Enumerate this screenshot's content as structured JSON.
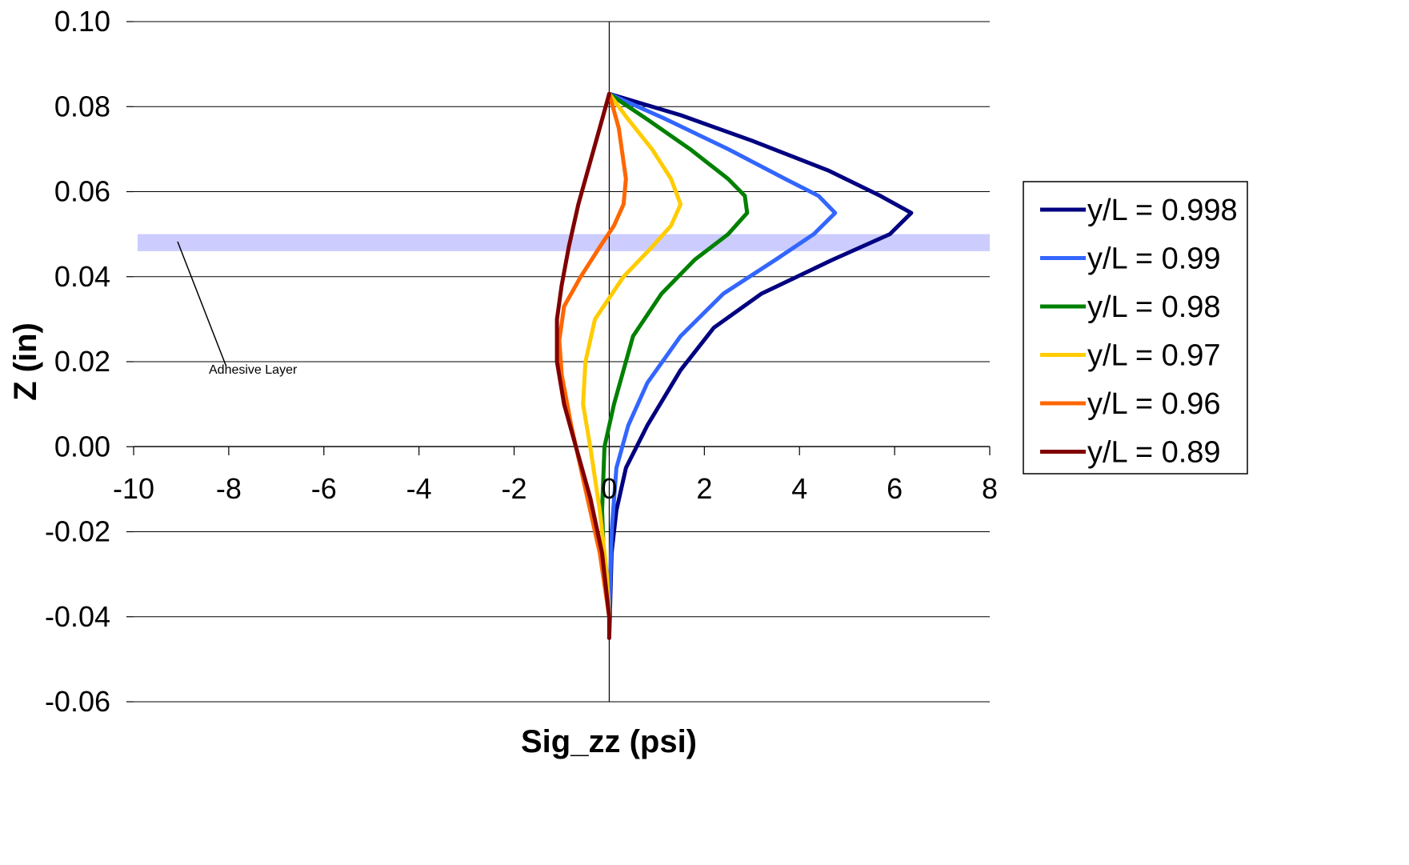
{
  "chart_data": {
    "type": "line",
    "title": "",
    "xlabel": "Sig_zz (psi)",
    "ylabel": "Z (in)",
    "xlim": [
      -10,
      8
    ],
    "ylim": [
      -0.06,
      0.1
    ],
    "x_ticks": [
      "-10",
      "-8",
      "-6",
      "-4",
      "-2",
      "0",
      "2",
      "4",
      "6",
      "8"
    ],
    "y_ticks": [
      "0.10",
      "0.08",
      "0.06",
      "0.04",
      "0.02",
      "0.00",
      "-0.02",
      "-0.04",
      "-0.06"
    ],
    "grid": "horizontal",
    "legend_position": "right",
    "annotation": {
      "text": "Adhesive Layer",
      "band_z": [
        0.046,
        0.05
      ],
      "band_color": "#ccccff"
    },
    "series": [
      {
        "name": "y/L = 0.998",
        "color": "#000080",
        "points": [
          [
            0,
            0.083
          ],
          [
            1.5,
            0.078
          ],
          [
            3,
            0.072
          ],
          [
            4.6,
            0.065
          ],
          [
            5.7,
            0.059
          ],
          [
            6.35,
            0.055
          ],
          [
            5.9,
            0.05
          ],
          [
            4.7,
            0.044
          ],
          [
            3.2,
            0.036
          ],
          [
            2.2,
            0.028
          ],
          [
            1.5,
            0.018
          ],
          [
            0.8,
            0.005
          ],
          [
            0.35,
            -0.005
          ],
          [
            0.15,
            -0.015
          ],
          [
            0.05,
            -0.025
          ],
          [
            0,
            -0.045
          ]
        ]
      },
      {
        "name": "y/L = 0.99",
        "color": "#3366ff",
        "points": [
          [
            0,
            0.083
          ],
          [
            1.2,
            0.077
          ],
          [
            2.5,
            0.07
          ],
          [
            3.7,
            0.063
          ],
          [
            4.4,
            0.059
          ],
          [
            4.75,
            0.055
          ],
          [
            4.3,
            0.05
          ],
          [
            3.5,
            0.044
          ],
          [
            2.4,
            0.036
          ],
          [
            1.5,
            0.026
          ],
          [
            0.8,
            0.015
          ],
          [
            0.4,
            0.005
          ],
          [
            0.15,
            -0.005
          ],
          [
            0.05,
            -0.02
          ],
          [
            0,
            -0.04
          ]
        ]
      },
      {
        "name": "y/L = 0.98",
        "color": "#008000",
        "points": [
          [
            0,
            0.083
          ],
          [
            0.8,
            0.077
          ],
          [
            1.7,
            0.07
          ],
          [
            2.5,
            0.063
          ],
          [
            2.85,
            0.059
          ],
          [
            2.9,
            0.055
          ],
          [
            2.5,
            0.05
          ],
          [
            1.8,
            0.044
          ],
          [
            1.1,
            0.036
          ],
          [
            0.5,
            0.026
          ],
          [
            0.1,
            0.01
          ],
          [
            -0.1,
            0.0
          ],
          [
            -0.15,
            -0.015
          ],
          [
            -0.1,
            -0.03
          ],
          [
            0,
            -0.04
          ]
        ]
      },
      {
        "name": "y/L = 0.97",
        "color": "#ffcc00",
        "points": [
          [
            0,
            0.083
          ],
          [
            0.4,
            0.077
          ],
          [
            0.9,
            0.07
          ],
          [
            1.3,
            0.063
          ],
          [
            1.5,
            0.057
          ],
          [
            1.3,
            0.052
          ],
          [
            0.9,
            0.047
          ],
          [
            0.3,
            0.04
          ],
          [
            -0.3,
            0.03
          ],
          [
            -0.5,
            0.02
          ],
          [
            -0.55,
            0.01
          ],
          [
            -0.4,
            0.0
          ],
          [
            -0.2,
            -0.015
          ],
          [
            -0.05,
            -0.03
          ],
          [
            0,
            -0.04
          ]
        ]
      },
      {
        "name": "y/L = 0.96",
        "color": "#ff6600",
        "points": [
          [
            0,
            0.083
          ],
          [
            0.2,
            0.075
          ],
          [
            0.35,
            0.063
          ],
          [
            0.3,
            0.057
          ],
          [
            0.1,
            0.052
          ],
          [
            -0.2,
            0.047
          ],
          [
            -0.6,
            0.04
          ],
          [
            -0.95,
            0.033
          ],
          [
            -1.05,
            0.025
          ],
          [
            -1.0,
            0.017
          ],
          [
            -0.8,
            0.005
          ],
          [
            -0.5,
            -0.01
          ],
          [
            -0.2,
            -0.025
          ],
          [
            0,
            -0.04
          ]
        ]
      },
      {
        "name": "y/L = 0.89",
        "color": "#800000",
        "points": [
          [
            0,
            0.083
          ],
          [
            -0.2,
            0.075
          ],
          [
            -0.45,
            0.065
          ],
          [
            -0.65,
            0.057
          ],
          [
            -0.85,
            0.047
          ],
          [
            -1.0,
            0.038
          ],
          [
            -1.1,
            0.03
          ],
          [
            -1.1,
            0.02
          ],
          [
            -0.95,
            0.01
          ],
          [
            -0.7,
            0.0
          ],
          [
            -0.4,
            -0.012
          ],
          [
            -0.15,
            -0.025
          ],
          [
            0,
            -0.04
          ],
          [
            0,
            -0.045
          ]
        ]
      }
    ]
  }
}
